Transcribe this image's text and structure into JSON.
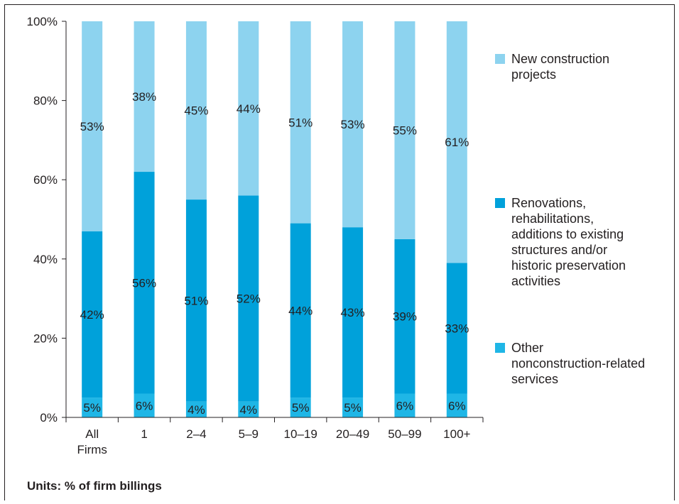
{
  "chart_data": {
    "type": "bar",
    "stacked": true,
    "categories": [
      [
        "All",
        "Firms"
      ],
      [
        "1"
      ],
      [
        "2–4"
      ],
      [
        "5–9"
      ],
      [
        "10–19"
      ],
      [
        "20–49"
      ],
      [
        "50–99"
      ],
      [
        "100+"
      ]
    ],
    "series": [
      {
        "name": "Other nonconstruction-related services",
        "legend_lines": [
          "Other",
          "nonconstruction-related",
          "services"
        ],
        "color": "#1fb6e6",
        "values": [
          5,
          6,
          4,
          4,
          5,
          5,
          6,
          6
        ],
        "labels": [
          "5%",
          "6%",
          "4%",
          "4%",
          "5%",
          "5%",
          "6%",
          "6%"
        ]
      },
      {
        "name": "Renovations, rehabilitations, additions to existing structures and/or historic preservation activities",
        "legend_lines": [
          "Renovations,",
          "rehabilitations,",
          "additions to existing",
          "structures and/or",
          "historic preservation",
          "activities"
        ],
        "color": "#00a1da",
        "values": [
          42,
          56,
          51,
          52,
          44,
          43,
          39,
          33
        ],
        "labels": [
          "42%",
          "56%",
          "51%",
          "52%",
          "44%",
          "43%",
          "39%",
          "33%"
        ]
      },
      {
        "name": "New construction projects",
        "legend_lines": [
          "New construction",
          "projects"
        ],
        "color": "#8dd3ef",
        "values": [
          53,
          38,
          45,
          44,
          51,
          53,
          55,
          61
        ],
        "labels": [
          "53%",
          "38%",
          "45%",
          "44%",
          "51%",
          "53%",
          "55%",
          "61%"
        ]
      }
    ],
    "ylim": [
      0,
      100
    ],
    "yticks": [
      "0%",
      "20%",
      "40%",
      "60%",
      "80%",
      "100%"
    ],
    "legend_position": "right",
    "grid": false,
    "units": "Units: % of firm billings"
  }
}
